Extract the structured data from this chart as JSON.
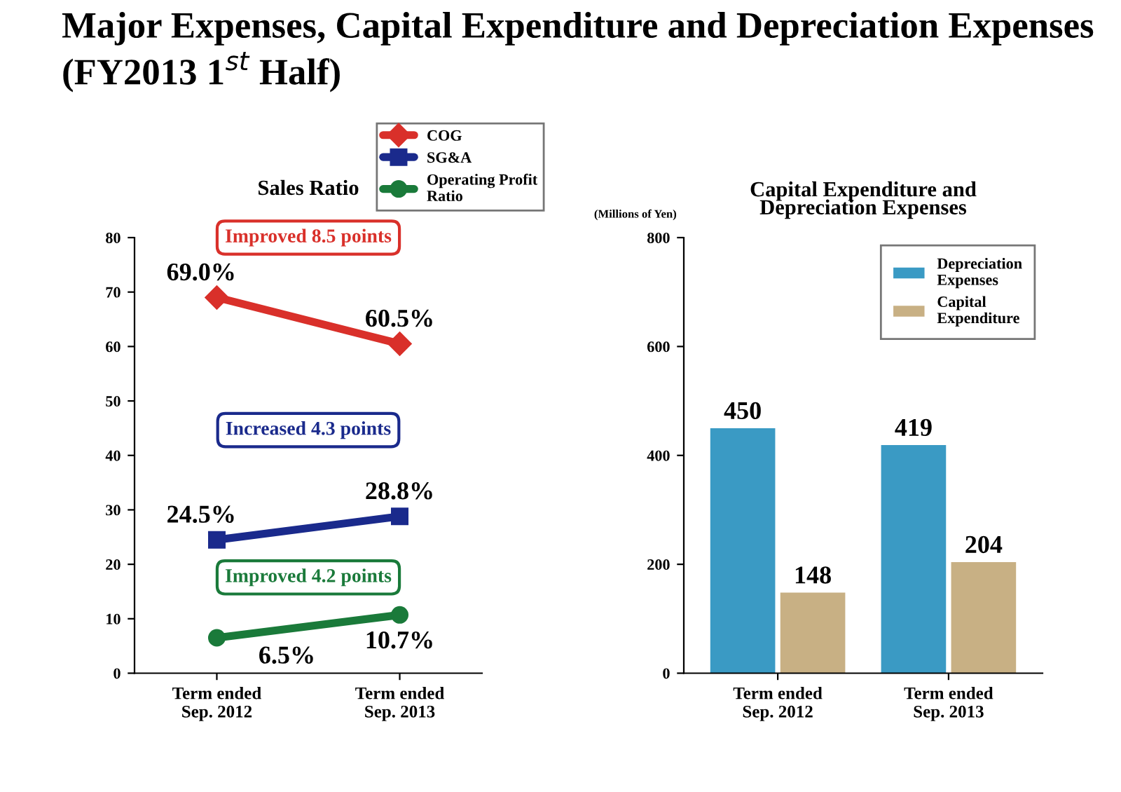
{
  "chart_data": [
    {
      "type": "other",
      "title": "Major Expenses, Capital Expenditure and Depreciation Expenses (FY2013 1$^{st}$ Half)"
    },
    {
      "type": "line",
      "title": "Sales Ratio",
      "categories": [
        "Term ended\nSep. 2012",
        "Term ended\nSep. 2013"
      ],
      "series": [
        {
          "name": "COG",
          "color": "#d9302a",
          "marker": "diamond",
          "values": [
            69.0,
            60.5
          ],
          "value_labels": [
            "69.0%",
            "60.5%"
          ]
        },
        {
          "name": "SG&A",
          "color": "#1a2a8c",
          "marker": "square",
          "values": [
            24.5,
            28.8
          ],
          "value_labels": [
            "24.5%",
            "28.8%"
          ]
        },
        {
          "name": "Operating Profit\nRatio",
          "color": "#1a7a3a",
          "marker": "circle",
          "values": [
            6.5,
            10.7
          ],
          "value_labels": [
            "6.5%",
            "10.7%"
          ]
        }
      ],
      "annotations": [
        "Improved 8.5 points",
        "Increased 4.3 points",
        "Improved 4.2 points"
      ],
      "ylim": [
        0,
        80
      ],
      "yticks": [
        0,
        10,
        20,
        30,
        40,
        50,
        60,
        70,
        80
      ],
      "grid": false,
      "legend": "top right"
    },
    {
      "type": "bar",
      "title": "Capital Expenditure and\nDepreciation Expenses",
      "ylabel": "(Millions of Yen)",
      "categories": [
        "Term ended\nSep. 2012",
        "Term ended\nSep. 2013"
      ],
      "series": [
        {
          "name": "Depreciation\nExpenses",
          "color": "#3a9ac4",
          "values": [
            450,
            419
          ]
        },
        {
          "name": "Capital\nExpenditure",
          "color": "#c8b084",
          "values": [
            148,
            204
          ]
        }
      ],
      "ylim": [
        0,
        800
      ],
      "yticks": [
        0,
        200,
        400,
        600,
        800
      ],
      "data_labels": true,
      "grid": false,
      "legend": "top right"
    }
  ]
}
